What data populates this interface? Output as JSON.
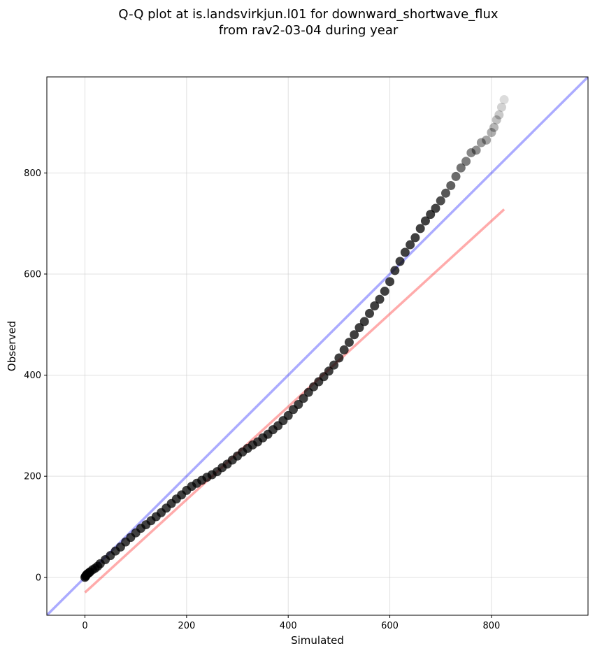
{
  "chart_data": {
    "type": "scatter",
    "title_line1": "Q-Q plot at is.landsvirkjun.l01 for downward_shortwave_flux",
    "title_line2": "from rav2-03-04 during year",
    "xlabel": "Simulated",
    "ylabel": "Observed",
    "xlim": [
      -75,
      990
    ],
    "ylim": [
      -75,
      990
    ],
    "xticks": [
      0,
      200,
      400,
      600,
      800
    ],
    "yticks": [
      0,
      200,
      400,
      600,
      800
    ],
    "grid": true,
    "point_color": "#000000",
    "one_to_one_line": {
      "color": "#0000ff",
      "x": [
        -75,
        990
      ],
      "y": [
        -75,
        990
      ]
    },
    "fit_line": {
      "color": "#ff0000",
      "x": [
        0,
        825
      ],
      "y": [
        -30,
        728
      ]
    },
    "quantile_points": {
      "x": [
        0,
        1,
        2,
        3,
        5,
        8,
        10,
        15,
        20,
        25,
        30,
        40,
        50,
        60,
        70,
        80,
        90,
        100,
        110,
        120,
        130,
        140,
        150,
        160,
        170,
        180,
        190,
        200,
        210,
        220,
        230,
        240,
        250,
        260,
        270,
        280,
        290,
        300,
        310,
        320,
        330,
        340,
        350,
        360,
        370,
        380,
        390,
        400,
        410,
        420,
        430,
        440,
        450,
        460,
        470,
        480,
        490,
        500,
        510,
        520,
        530,
        540,
        550,
        560,
        570,
        580,
        590,
        600,
        610,
        620,
        630,
        640,
        650,
        660,
        670,
        680,
        690,
        700,
        710,
        720,
        730,
        740,
        750,
        760,
        770,
        780,
        790,
        800,
        805,
        810,
        815,
        820,
        825
      ],
      "y": [
        0,
        2,
        3,
        5,
        7,
        9,
        11,
        15,
        18,
        22,
        27,
        35,
        43,
        52,
        60,
        70,
        79,
        88,
        97,
        104,
        112,
        120,
        128,
        137,
        146,
        155,
        163,
        172,
        180,
        186,
        192,
        198,
        203,
        209,
        217,
        224,
        232,
        240,
        248,
        255,
        262,
        268,
        276,
        283,
        292,
        300,
        310,
        320,
        332,
        342,
        354,
        366,
        377,
        387,
        397,
        408,
        420,
        434,
        450,
        465,
        480,
        494,
        506,
        522,
        537,
        550,
        566,
        585,
        607,
        625,
        643,
        658,
        672,
        690,
        705,
        718,
        730,
        745,
        760,
        775,
        793,
        810,
        823,
        840,
        845,
        860,
        865,
        880,
        890,
        905,
        915,
        930,
        945
      ]
    }
  }
}
